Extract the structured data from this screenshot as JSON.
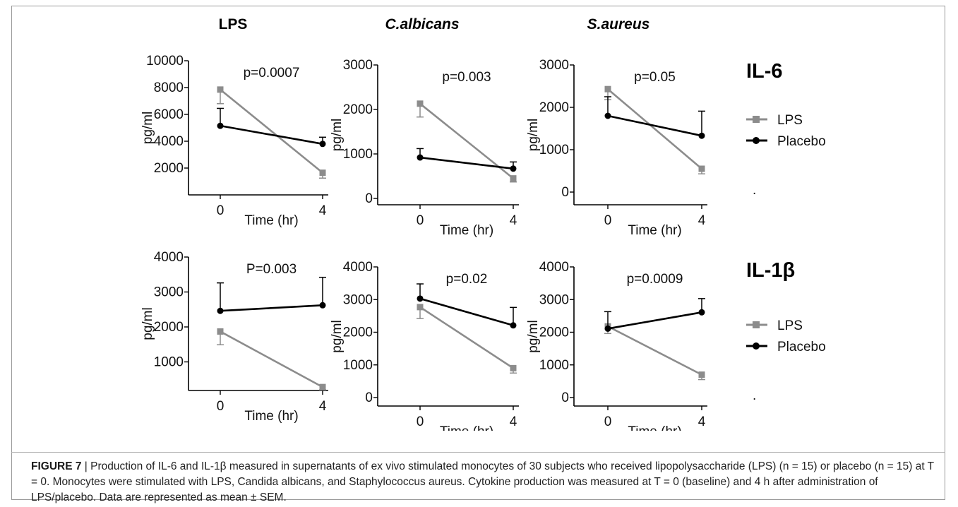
{
  "figure": {
    "column_titles": [
      {
        "text": "LPS",
        "italic": false
      },
      {
        "text": "C.albicans",
        "italic": true
      },
      {
        "text": "S.aureus",
        "italic": true
      }
    ],
    "row_titles": [
      "IL-6",
      "IL-1β"
    ],
    "series_colors": {
      "LPS": "#8c8c8c",
      "Placebo": "#000000"
    },
    "legend_labels": [
      "LPS",
      "Placebo"
    ],
    "caption": {
      "label": "FIGURE 7",
      "text": " | Production of IL-6 and IL-1β measured in supernatants of ex vivo stimulated monocytes of 30 subjects who received lipopolysaccharide (LPS) (n = 15) or placebo (n = 15) at T = 0. Monocytes were stimulated with LPS, Candida albicans, and Staphylococcus aureus. Cytokine production was measured at T = 0 (baseline) and 4 h after administration of LPS/placebo. Data are represented as mean ± SEM."
    }
  },
  "chart_data": [
    {
      "type": "line",
      "row": "IL-6",
      "column": "LPS",
      "title": "",
      "xlabel": "Time (hr)",
      "ylabel": "pg/ml",
      "annotation": "p=0.0007",
      "x": [
        0,
        4
      ],
      "ylim": [
        0,
        10000
      ],
      "yticks": [
        2000,
        4000,
        6000,
        8000,
        10000
      ],
      "ytick_labels": [
        "2000",
        "4000",
        "6000",
        "8000",
        "10000"
      ],
      "series": [
        {
          "name": "LPS",
          "values": [
            7850,
            1650
          ],
          "sem": [
            1050,
            400
          ]
        },
        {
          "name": "Placebo",
          "values": [
            5150,
            3800
          ],
          "sem": [
            1300,
            500
          ]
        }
      ]
    },
    {
      "type": "line",
      "row": "IL-6",
      "column": "C.albicans",
      "title": "",
      "xlabel": "Time (hr)",
      "ylabel": "pg/ml",
      "annotation": "p=0.003",
      "x": [
        0,
        4
      ],
      "ylim": [
        0,
        3000
      ],
      "yticks": [
        0,
        1000,
        2000,
        3000
      ],
      "ytick_labels": [
        "0",
        "1000",
        "2000",
        "3000"
      ],
      "series": [
        {
          "name": "LPS",
          "values": [
            2130,
            450
          ],
          "sem": [
            300,
            80
          ]
        },
        {
          "name": "Placebo",
          "values": [
            920,
            670
          ],
          "sem": [
            200,
            150
          ]
        }
      ]
    },
    {
      "type": "line",
      "row": "IL-6",
      "column": "S.aureus",
      "title": "",
      "xlabel": "Time (hr)",
      "ylabel": "pg/ml",
      "annotation": "p=0.05",
      "x": [
        0,
        4
      ],
      "ylim": [
        0,
        3000
      ],
      "yticks": [
        0,
        1000,
        2000,
        3000
      ],
      "ytick_labels": [
        "0",
        "1000",
        "2000",
        "3000"
      ],
      "series": [
        {
          "name": "LPS",
          "values": [
            2430,
            550
          ],
          "sem": [
            250,
            120
          ]
        },
        {
          "name": "Placebo",
          "values": [
            1800,
            1330
          ],
          "sem": [
            450,
            580
          ]
        }
      ]
    },
    {
      "type": "line",
      "row": "IL-1β",
      "column": "LPS",
      "title": "",
      "xlabel": "Time (hr)",
      "ylabel": "pg/ml",
      "annotation": "P=0.003",
      "x": [
        0,
        4
      ],
      "ylim": [
        0,
        4000
      ],
      "yticks": [
        1000,
        2000,
        3000,
        4000
      ],
      "ytick_labels": [
        "1000",
        "2000",
        "3000",
        "4000"
      ],
      "series": [
        {
          "name": "LPS",
          "values": [
            1870,
            280
          ],
          "sem": [
            380,
            80
          ]
        },
        {
          "name": "Placebo",
          "values": [
            2460,
            2620
          ],
          "sem": [
            800,
            800
          ]
        }
      ]
    },
    {
      "type": "line",
      "row": "IL-1β",
      "column": "C.albicans",
      "title": "",
      "xlabel": "Time (hr)",
      "ylabel": "pg/ml",
      "annotation": "p=0.02",
      "x": [
        0,
        4
      ],
      "ylim": [
        0,
        4000
      ],
      "yticks": [
        0,
        1000,
        2000,
        3000,
        4000
      ],
      "ytick_labels": [
        "0",
        "1000",
        "2000",
        "3000",
        "4000"
      ],
      "series": [
        {
          "name": "LPS",
          "values": [
            2770,
            900
          ],
          "sem": [
            350,
            150
          ]
        },
        {
          "name": "Placebo",
          "values": [
            3030,
            2210
          ],
          "sem": [
            450,
            550
          ]
        }
      ]
    },
    {
      "type": "line",
      "row": "IL-1β",
      "column": "S.aureus",
      "title": "",
      "xlabel": "Time (hr)",
      "ylabel": "pg/ml",
      "annotation": "p=0.0009",
      "x": [
        0,
        4
      ],
      "ylim": [
        0,
        4000
      ],
      "yticks": [
        0,
        1000,
        2000,
        3000,
        4000
      ],
      "ytick_labels": [
        "0",
        "1000",
        "2000",
        "3000",
        "4000"
      ],
      "series": [
        {
          "name": "LPS",
          "values": [
            2180,
            700
          ],
          "sem": [
            220,
            150
          ]
        },
        {
          "name": "Placebo",
          "values": [
            2110,
            2610
          ],
          "sem": [
            520,
            420
          ]
        }
      ]
    }
  ]
}
